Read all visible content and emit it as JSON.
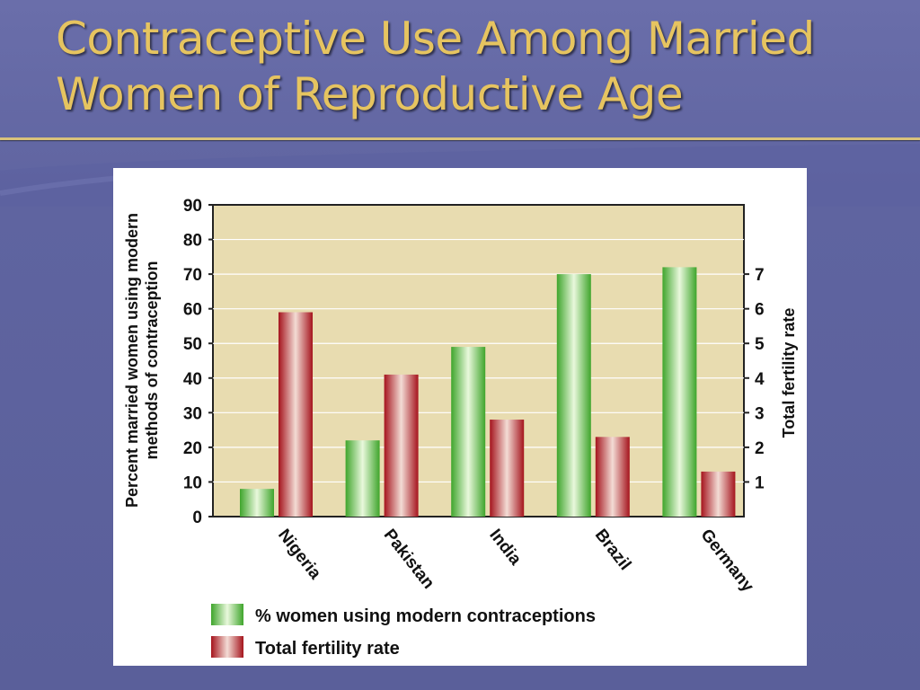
{
  "slide": {
    "title_line1": "Contraceptive Use Among Married",
    "title_line2": "Women of Reproductive Age"
  },
  "colors": {
    "title": "#e6c460",
    "plot_background": "#e8dcb0",
    "green_series": "#6cc94a",
    "red_series": "#b8242c"
  },
  "chart_data": {
    "type": "bar",
    "categories": [
      "Nigeria",
      "Pakistan",
      "India",
      "Brazil",
      "Germany"
    ],
    "series": [
      {
        "name": "% women using modern contraceptions",
        "axis": "left",
        "values": [
          8,
          22,
          49,
          70,
          72
        ]
      },
      {
        "name": "Total fertility rate",
        "axis": "right",
        "values": [
          5.9,
          4.1,
          2.8,
          2.3,
          1.3
        ]
      }
    ],
    "ylabel": "Percent married women using modern methods of contraception",
    "y2label": "Total fertility rate",
    "ylim": [
      0,
      90
    ],
    "yticks": [
      0,
      10,
      20,
      30,
      40,
      50,
      60,
      70,
      80,
      90
    ],
    "y2lim": [
      0,
      9
    ],
    "y2ticks": [
      1,
      2,
      3,
      4,
      5,
      6,
      7
    ],
    "grid": true,
    "legend_position": "bottom-left"
  }
}
